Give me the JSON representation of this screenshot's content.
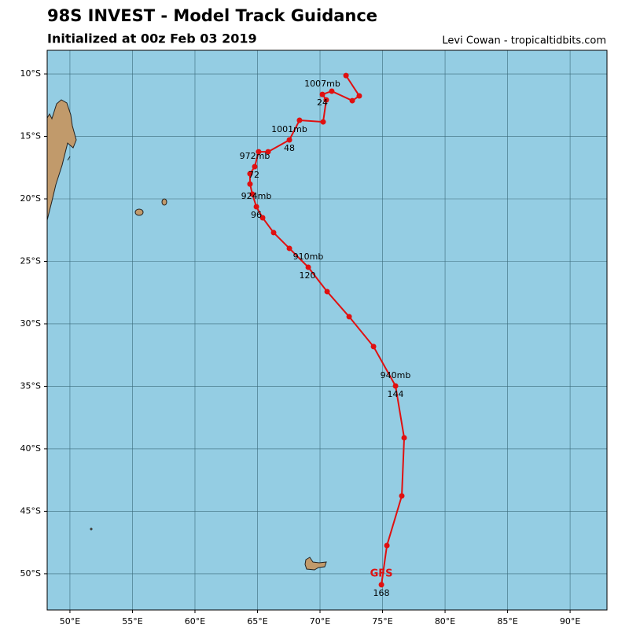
{
  "chart_data": {
    "type": "track",
    "title": "98S INVEST - Model Track Guidance",
    "subtitle": "Initialized at 00z Feb 03 2019",
    "credit": "Levi Cowan - tropicaltidbits.com",
    "xlim": [
      48.18,
      92.95
    ],
    "ylim": [
      -52.9,
      -8.11
    ],
    "xticks": [
      {
        "value": 50,
        "label": "50°E"
      },
      {
        "value": 55,
        "label": "55°E"
      },
      {
        "value": 60,
        "label": "60°E"
      },
      {
        "value": 65,
        "label": "65°E"
      },
      {
        "value": 70,
        "label": "70°E"
      },
      {
        "value": 75,
        "label": "75°E"
      },
      {
        "value": 80,
        "label": "80°E"
      },
      {
        "value": 85,
        "label": "85°E"
      },
      {
        "value": 90,
        "label": "90°E"
      }
    ],
    "yticks": [
      {
        "value": -10,
        "label": "10°S"
      },
      {
        "value": -15,
        "label": "15°S"
      },
      {
        "value": -20,
        "label": "20°S"
      },
      {
        "value": -25,
        "label": "25°S"
      },
      {
        "value": -30,
        "label": "30°S"
      },
      {
        "value": -35,
        "label": "35°S"
      },
      {
        "value": -40,
        "label": "40°S"
      },
      {
        "value": -45,
        "label": "45°S"
      },
      {
        "value": -50,
        "label": "50°S"
      }
    ],
    "grid": true,
    "series": [
      {
        "name": "GFS",
        "color": "#e01010",
        "x": [
          72.08,
          73.14,
          72.58,
          70.94,
          70.19,
          70.5,
          70.25,
          68.36,
          67.55,
          65.85,
          65.09,
          64.78,
          64.4,
          64.4,
          64.59,
          64.91,
          65.41,
          66.29,
          67.55,
          69.06,
          70.57,
          72.33,
          74.28,
          76.04,
          76.73,
          76.54,
          75.35,
          74.91
        ],
        "values": [
          -10.13,
          -11.76,
          -12.14,
          -11.38,
          -11.64,
          -12.08,
          -13.84,
          -13.71,
          -15.28,
          -16.23,
          -16.23,
          -17.42,
          -17.99,
          -18.81,
          -19.62,
          -20.63,
          -21.51,
          -22.7,
          -23.96,
          -25.47,
          -27.42,
          -29.43,
          -31.82,
          -34.97,
          -39.12,
          -43.77,
          -47.74,
          -50.88
        ]
      }
    ],
    "pressure_labels": [
      "1007mb",
      "1001mb",
      "972mb",
      "924mb",
      "910mb",
      "940mb"
    ],
    "hour_labels": [
      "24",
      "48",
      "72",
      "96",
      "120",
      "144",
      "168"
    ]
  }
}
